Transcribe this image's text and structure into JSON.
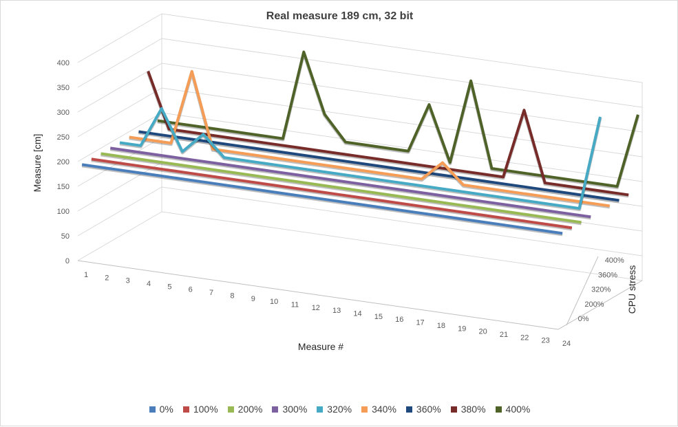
{
  "chart_data": {
    "type": "line",
    "title": "Real measure 189 cm, 32 bit",
    "ylabel": "Measure [cm]",
    "xlabel": "Measure #",
    "zlabel": "CPU stress",
    "ylim": [
      0,
      400
    ],
    "y_ticks": [
      "0",
      "50",
      "100",
      "150",
      "200",
      "250",
      "300",
      "350",
      "400"
    ],
    "categories": [
      "1",
      "2",
      "3",
      "4",
      "5",
      "6",
      "7",
      "8",
      "9",
      "10",
      "11",
      "12",
      "13",
      "14",
      "15",
      "16",
      "17",
      "18",
      "19",
      "20",
      "21",
      "22",
      "23",
      "24"
    ],
    "depth_ticks": [
      "0%",
      "200%",
      "320%",
      "360%",
      "400%"
    ],
    "grid": true,
    "legend_position": "bottom",
    "series": [
      {
        "name": "0%",
        "color": "#4a7ebb",
        "values": [
          189,
          189,
          189,
          189,
          189,
          189,
          189,
          189,
          189,
          189,
          189,
          189,
          189,
          189,
          189,
          189,
          189,
          189,
          189,
          189,
          189,
          189,
          189,
          189
        ]
      },
      {
        "name": "100%",
        "color": "#be4b48",
        "values": [
          189,
          189,
          189,
          189,
          189,
          189,
          189,
          189,
          189,
          189,
          189,
          189,
          189,
          189,
          189,
          189,
          189,
          189,
          189,
          189,
          189,
          189,
          189,
          189
        ]
      },
      {
        "name": "200%",
        "color": "#98b954",
        "values": [
          189,
          189,
          189,
          189,
          189,
          189,
          189,
          189,
          189,
          189,
          189,
          189,
          189,
          189,
          189,
          189,
          189,
          189,
          189,
          189,
          189,
          189,
          189,
          189
        ]
      },
      {
        "name": "300%",
        "color": "#7d60a0",
        "values": [
          189,
          189,
          189,
          189,
          189,
          189,
          189,
          189,
          189,
          189,
          189,
          189,
          189,
          189,
          189,
          189,
          189,
          189,
          189,
          189,
          189,
          189,
          189,
          189
        ]
      },
      {
        "name": "320%",
        "color": "#46aac5",
        "values": [
          189,
          189,
          270,
          189,
          230,
          189,
          189,
          189,
          189,
          189,
          189,
          189,
          189,
          189,
          189,
          189,
          189,
          189,
          189,
          189,
          189,
          189,
          189,
          380
        ]
      },
      {
        "name": "340%",
        "color": "#f59d56",
        "values": [
          189,
          189,
          189,
          340,
          189,
          189,
          189,
          189,
          189,
          189,
          189,
          189,
          189,
          189,
          189,
          228,
          189,
          189,
          189,
          189,
          189,
          189,
          189,
          189
        ]
      },
      {
        "name": "360%",
        "color": "#1f497d",
        "values": [
          189,
          189,
          189,
          189,
          189,
          189,
          189,
          189,
          189,
          189,
          189,
          189,
          189,
          189,
          189,
          189,
          189,
          189,
          189,
          189,
          189,
          189,
          189,
          189
        ]
      },
      {
        "name": "380%",
        "color": "#772c2a",
        "values": [
          300,
          189,
          189,
          189,
          189,
          189,
          189,
          189,
          189,
          189,
          189,
          189,
          189,
          189,
          189,
          189,
          189,
          189,
          330,
          189,
          189,
          189,
          189,
          189
        ]
      },
      {
        "name": "400%",
        "color": "#4f6228",
        "values": [
          189,
          189,
          189,
          189,
          189,
          189,
          189,
          370,
          250,
          200,
          200,
          200,
          200,
          300,
          189,
          360,
          189,
          189,
          189,
          189,
          189,
          189,
          189,
          340
        ]
      }
    ]
  }
}
